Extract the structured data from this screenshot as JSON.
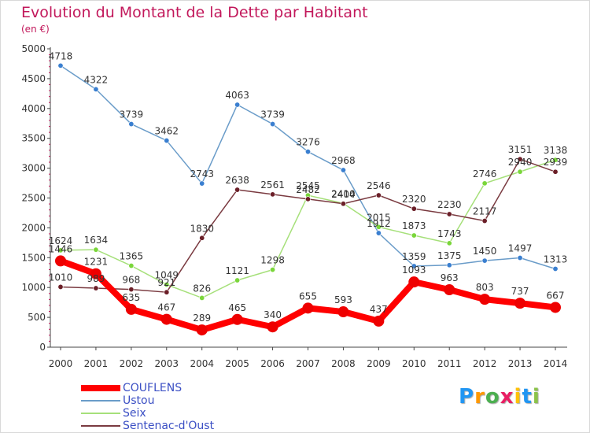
{
  "header": {
    "title": "Evolution du Montant de la Dette par Habitant",
    "unit": "(en €)"
  },
  "brand": {
    "letters": [
      "P",
      "r",
      "o",
      "x",
      "i",
      "t",
      "i"
    ],
    "colors": [
      "#2196f3",
      "#ff9800",
      "#4caf50",
      "#e91e63",
      "#ffc107",
      "#2196f3",
      "#8bc34a"
    ]
  },
  "chart_data": {
    "type": "line",
    "title": "Evolution du Montant de la Dette par Habitant",
    "ylabel": "(en €)",
    "xlabel": "",
    "ylim": [
      0,
      5000
    ],
    "yticks": [
      0,
      500,
      1000,
      1500,
      2000,
      2500,
      3000,
      3500,
      4000,
      4500,
      5000
    ],
    "categories": [
      "2000",
      "2001",
      "2002",
      "2003",
      "2004",
      "2005",
      "2006",
      "2007",
      "2008",
      "2009",
      "2010",
      "2011",
      "2012",
      "2013",
      "2014"
    ],
    "grid": false,
    "legend_position": "bottom-left",
    "series": [
      {
        "name": "Ustou",
        "color": "#6a9cc9",
        "marker": "#3a7fd0",
        "values": [
          4718,
          4322,
          3739,
          3462,
          2743,
          4063,
          3739,
          3276,
          2968,
          1912,
          1359,
          1375,
          1450,
          1497,
          1313
        ]
      },
      {
        "name": "Seix",
        "color": "#a6e07a",
        "marker": "#7ad63a",
        "values": [
          1624,
          1634,
          1365,
          1049,
          826,
          1121,
          1298,
          2545,
          2410,
          2015,
          1873,
          1743,
          2746,
          2940,
          3138
        ]
      },
      {
        "name": "Sentenac-d'Oust",
        "color": "#7a3a40",
        "marker": "#6b1f28",
        "values": [
          1010,
          989,
          968,
          921,
          1830,
          2638,
          2561,
          2482,
          2404,
          2546,
          2320,
          2230,
          2117,
          3151,
          2939
        ]
      },
      {
        "name": "COUFLENS",
        "color": "#ff0000",
        "marker": "#ee0000",
        "values": [
          1446,
          1231,
          635,
          467,
          289,
          465,
          340,
          655,
          593,
          437,
          1093,
          963,
          803,
          737,
          667
        ]
      }
    ]
  }
}
